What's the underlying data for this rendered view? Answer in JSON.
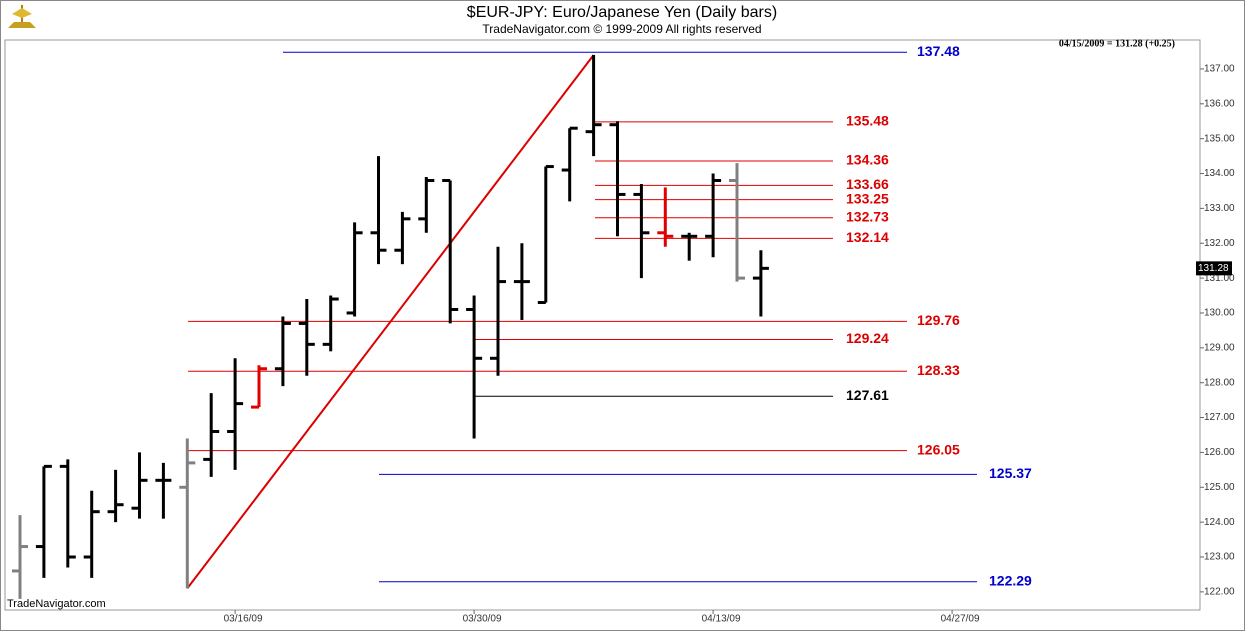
{
  "chart_data": {
    "type": "ohlc",
    "title": "$EUR-JPY:  Euro/Japanese Yen  (Daily bars)",
    "subtitle": "TradeNavigator.com © 1999-2009 All rights reserved",
    "annotation": "04/15/2009 = 131.28 (+0.25)",
    "watermark": "TradeNavigator.com",
    "categories": [
      null,
      null,
      null,
      null,
      null,
      null,
      null,
      null,
      null,
      "03/16/09",
      null,
      null,
      null,
      null,
      null,
      null,
      null,
      null,
      null,
      "03/30/09",
      null,
      null,
      null,
      null,
      null,
      null,
      null,
      null,
      null,
      "04/13/09",
      null,
      null,
      null,
      null,
      null,
      null,
      null,
      null,
      null,
      "04/27/09"
    ],
    "open": [
      122.6,
      123.3,
      125.6,
      123.0,
      124.3,
      124.4,
      125.2,
      125.0,
      125.8,
      126.6,
      127.3,
      128.4,
      129.7,
      129.1,
      130.0,
      132.3,
      131.8,
      132.7,
      133.8,
      130.1,
      128.7,
      130.9,
      130.3,
      134.1,
      135.2,
      135.4,
      133.4,
      132.3,
      132.2,
      132.2,
      133.8,
      131.0,
      null,
      null,
      null,
      null,
      null,
      null,
      null,
      null
    ],
    "high": [
      124.2,
      125.6,
      125.8,
      124.9,
      125.5,
      126.0,
      125.7,
      126.4,
      127.7,
      128.7,
      128.5,
      129.9,
      130.4,
      130.5,
      132.6,
      134.5,
      132.9,
      133.9,
      133.8,
      130.5,
      131.9,
      132.0,
      134.2,
      135.3,
      137.4,
      135.5,
      133.7,
      133.6,
      132.3,
      134.0,
      134.3,
      131.8,
      null,
      null,
      null,
      null,
      null,
      null,
      null,
      null
    ],
    "low": [
      121.8,
      122.4,
      122.7,
      122.4,
      124.0,
      124.1,
      124.1,
      122.1,
      125.3,
      125.5,
      127.3,
      127.9,
      128.2,
      128.9,
      129.9,
      131.4,
      131.4,
      132.3,
      129.7,
      126.4,
      128.2,
      129.8,
      130.3,
      133.2,
      134.5,
      132.2,
      131.0,
      131.9,
      131.5,
      131.6,
      130.9,
      129.9,
      null,
      null,
      null,
      null,
      null,
      null,
      null,
      null
    ],
    "close": [
      123.3,
      125.6,
      123.0,
      124.3,
      124.5,
      125.2,
      125.2,
      125.7,
      126.6,
      127.4,
      128.4,
      129.7,
      129.1,
      130.4,
      132.3,
      131.8,
      132.7,
      133.8,
      130.1,
      128.7,
      130.9,
      130.9,
      134.2,
      135.3,
      135.4,
      133.4,
      132.3,
      132.2,
      132.2,
      133.8,
      131.0,
      131.28,
      null,
      null,
      null,
      null,
      null,
      null,
      null,
      null
    ],
    "bar_colors": [
      "#808080",
      "#000000",
      "#000000",
      "#000000",
      "#000000",
      "#000000",
      "#000000",
      "#808080",
      "#000000",
      "#000000",
      "#e00000",
      "#000000",
      "#000000",
      "#000000",
      "#000000",
      "#000000",
      "#000000",
      "#000000",
      "#000000",
      "#000000",
      "#000000",
      "#000000",
      "#000000",
      "#000000",
      "#000000",
      "#000000",
      "#000000",
      "#e00000",
      "#000000",
      "#000000",
      "#808080",
      "#000000",
      null,
      null,
      null,
      null,
      null,
      null,
      null,
      null
    ],
    "levels": [
      {
        "value": 137.48,
        "color": "#0000cc"
      },
      {
        "value": 135.48,
        "color": "#dd0000"
      },
      {
        "value": 134.36,
        "color": "#dd0000"
      },
      {
        "value": 133.66,
        "color": "#dd0000"
      },
      {
        "value": 133.25,
        "color": "#dd0000"
      },
      {
        "value": 132.73,
        "color": "#dd0000"
      },
      {
        "value": 132.14,
        "color": "#dd0000"
      },
      {
        "value": 129.76,
        "color": "#dd0000"
      },
      {
        "value": 129.24,
        "color": "#dd0000"
      },
      {
        "value": 128.33,
        "color": "#dd0000"
      },
      {
        "value": 127.61,
        "color": "#000000"
      },
      {
        "value": 126.05,
        "color": "#dd0000"
      },
      {
        "value": 125.37,
        "color": "#0000cc"
      },
      {
        "value": 122.29,
        "color": "#0000cc"
      }
    ],
    "trendline": {
      "color": "#dd0000",
      "from_bar": 7,
      "to_bar": 24
    },
    "ylim": [
      121.48,
      137.83
    ],
    "yticks": [
      {
        "value": 122,
        "label": "122.00"
      },
      {
        "value": 123,
        "label": "123.00"
      },
      {
        "value": 124,
        "label": "124.00"
      },
      {
        "value": 125,
        "label": "125.00"
      },
      {
        "value": 126,
        "label": "126.00"
      },
      {
        "value": 127,
        "label": "127.00"
      },
      {
        "value": 128,
        "label": "128.00"
      },
      {
        "value": 129,
        "label": "129.00"
      },
      {
        "value": 130,
        "label": "130.00"
      },
      {
        "value": 131,
        "label": "131.00"
      },
      {
        "value": 132,
        "label": "132.00"
      },
      {
        "value": 133,
        "label": "133.00"
      },
      {
        "value": 134,
        "label": "134.00"
      },
      {
        "value": 135,
        "label": "135.00"
      },
      {
        "value": 136,
        "label": "136.00"
      },
      {
        "value": 137,
        "label": "137.00"
      }
    ],
    "grid": false
  }
}
